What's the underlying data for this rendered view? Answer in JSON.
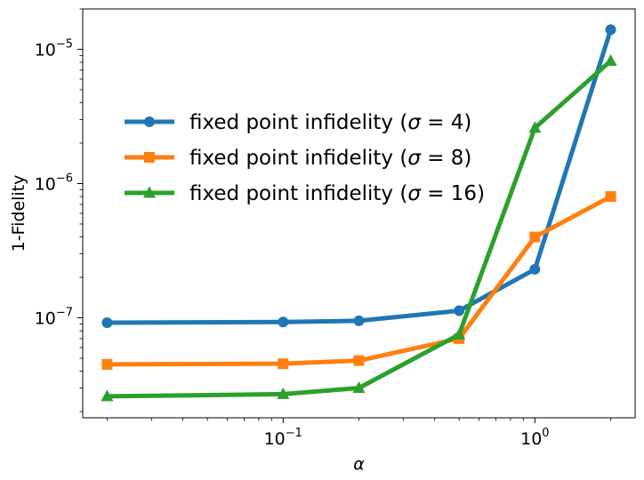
{
  "chart_data": {
    "type": "line",
    "title": "",
    "xlabel": "α",
    "ylabel": "1-Fidelity",
    "xscale": "log",
    "yscale": "log",
    "xlim": [
      0.016,
      2.5
    ],
    "ylim": [
      1.8e-08,
      2e-05
    ],
    "x_ticks": [
      {
        "value": 0.1,
        "base": "10",
        "exp": "−1"
      },
      {
        "value": 1,
        "base": "10",
        "exp": "0"
      }
    ],
    "y_ticks": [
      {
        "value": 1e-07,
        "base": "10",
        "exp": "−7"
      },
      {
        "value": 1e-06,
        "base": "10",
        "exp": "−6"
      },
      {
        "value": 1e-05,
        "base": "10",
        "exp": "−5"
      }
    ],
    "grid": false,
    "legend_position": "upper-left-center",
    "series": [
      {
        "name": "fixed point infidelity (σ = 4)",
        "legend_prefix": "fixed point infidelity (",
        "legend_var": "σ",
        "legend_rest": " = 4)",
        "color": "#1f77b4",
        "marker": "circle",
        "x": [
          0.02,
          0.1,
          0.2,
          0.5,
          1.0,
          2.0
        ],
        "y": [
          9.2e-08,
          9.3e-08,
          9.5e-08,
          1.13e-07,
          2.3e-07,
          1.4e-05
        ]
      },
      {
        "name": "fixed point infidelity (σ = 8)",
        "legend_prefix": "fixed point infidelity (",
        "legend_var": "σ",
        "legend_rest": " = 8)",
        "color": "#ff7f0e",
        "marker": "square",
        "x": [
          0.02,
          0.1,
          0.2,
          0.5,
          1.0,
          2.0
        ],
        "y": [
          4.5e-08,
          4.55e-08,
          4.8e-08,
          7e-08,
          4e-07,
          8e-07
        ]
      },
      {
        "name": "fixed point infidelity (σ = 16)",
        "legend_prefix": "fixed point infidelity (",
        "legend_var": "σ",
        "legend_rest": " = 16)",
        "color": "#2ca02c",
        "marker": "triangle",
        "x": [
          0.02,
          0.1,
          0.2,
          0.5,
          1.0,
          2.0
        ],
        "y": [
          2.6e-08,
          2.7e-08,
          3e-08,
          7.5e-08,
          2.6e-06,
          8.2e-06
        ]
      }
    ]
  }
}
